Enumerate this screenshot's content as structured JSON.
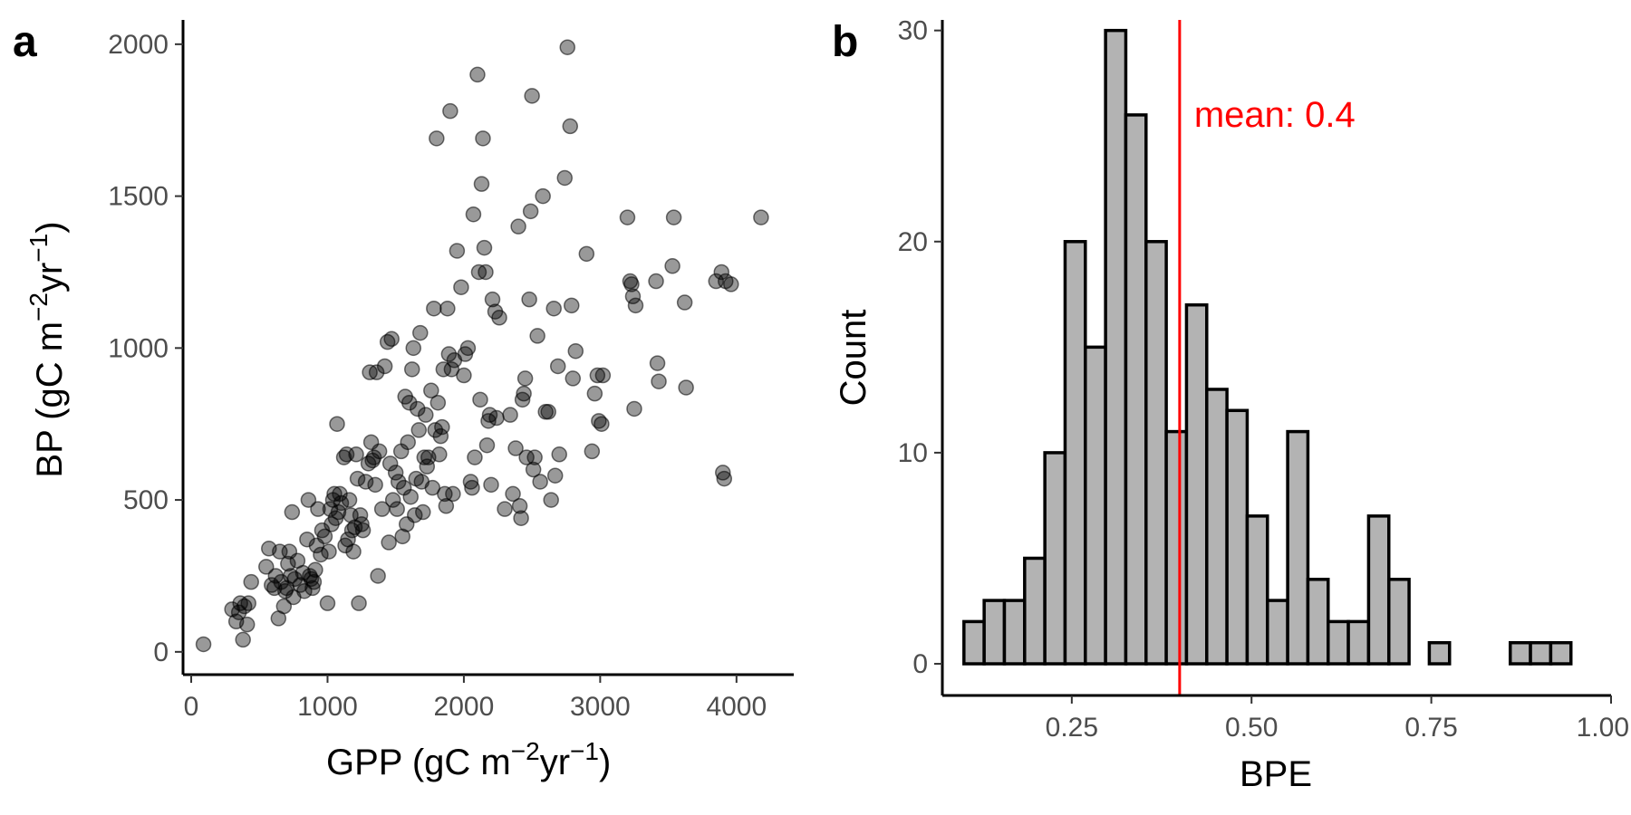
{
  "chart_data": [
    {
      "type": "scatter",
      "panel_label": "a",
      "xlabel": {
        "base": "GPP (gC m",
        "sup1": "−2",
        "mid": "yr",
        "sup2": "−1",
        "end": ")"
      },
      "ylabel": {
        "base": "BP (gC m",
        "sup1": "−2",
        "mid": "yr",
        "sup2": "−1",
        "end": ")"
      },
      "xlim": [
        -60,
        4420
      ],
      "ylim": [
        -75,
        2080
      ],
      "xticks": [
        0,
        1000,
        2000,
        3000,
        4000
      ],
      "yticks": [
        0,
        500,
        1000,
        1500,
        2000
      ],
      "point_color": "#000000",
      "point_opacity": 0.4,
      "points": [
        [
          90,
          25
        ],
        [
          300,
          140
        ],
        [
          330,
          100
        ],
        [
          350,
          130
        ],
        [
          360,
          160
        ],
        [
          380,
          40
        ],
        [
          390,
          150
        ],
        [
          410,
          90
        ],
        [
          420,
          160
        ],
        [
          440,
          230
        ],
        [
          550,
          280
        ],
        [
          570,
          340
        ],
        [
          590,
          220
        ],
        [
          610,
          210
        ],
        [
          620,
          250
        ],
        [
          640,
          110
        ],
        [
          650,
          330
        ],
        [
          660,
          230
        ],
        [
          680,
          150
        ],
        [
          690,
          200
        ],
        [
          700,
          210
        ],
        [
          710,
          290
        ],
        [
          720,
          330
        ],
        [
          730,
          250
        ],
        [
          740,
          460
        ],
        [
          750,
          180
        ],
        [
          760,
          240
        ],
        [
          780,
          300
        ],
        [
          800,
          220
        ],
        [
          820,
          260
        ],
        [
          830,
          200
        ],
        [
          850,
          370
        ],
        [
          860,
          500
        ],
        [
          870,
          250
        ],
        [
          880,
          240
        ],
        [
          890,
          210
        ],
        [
          900,
          230
        ],
        [
          910,
          270
        ],
        [
          920,
          350
        ],
        [
          930,
          470
        ],
        [
          950,
          320
        ],
        [
          960,
          400
        ],
        [
          980,
          380
        ],
        [
          1000,
          160
        ],
        [
          1010,
          330
        ],
        [
          1020,
          470
        ],
        [
          1030,
          420
        ],
        [
          1040,
          500
        ],
        [
          1050,
          520
        ],
        [
          1060,
          440
        ],
        [
          1070,
          750
        ],
        [
          1080,
          460
        ],
        [
          1090,
          520
        ],
        [
          1100,
          490
        ],
        [
          1120,
          640
        ],
        [
          1130,
          350
        ],
        [
          1140,
          650
        ],
        [
          1150,
          370
        ],
        [
          1160,
          500
        ],
        [
          1170,
          450
        ],
        [
          1180,
          400
        ],
        [
          1190,
          330
        ],
        [
          1200,
          410
        ],
        [
          1210,
          650
        ],
        [
          1220,
          570
        ],
        [
          1230,
          160
        ],
        [
          1240,
          450
        ],
        [
          1250,
          420
        ],
        [
          1260,
          400
        ],
        [
          1280,
          560
        ],
        [
          1300,
          620
        ],
        [
          1310,
          920
        ],
        [
          1320,
          690
        ],
        [
          1330,
          630
        ],
        [
          1340,
          640
        ],
        [
          1350,
          550
        ],
        [
          1360,
          920
        ],
        [
          1370,
          250
        ],
        [
          1380,
          660
        ],
        [
          1400,
          470
        ],
        [
          1420,
          940
        ],
        [
          1440,
          1020
        ],
        [
          1450,
          360
        ],
        [
          1460,
          620
        ],
        [
          1470,
          1030
        ],
        [
          1480,
          500
        ],
        [
          1500,
          590
        ],
        [
          1510,
          470
        ],
        [
          1520,
          560
        ],
        [
          1540,
          660
        ],
        [
          1550,
          380
        ],
        [
          1560,
          540
        ],
        [
          1570,
          840
        ],
        [
          1580,
          420
        ],
        [
          1590,
          690
        ],
        [
          1600,
          820
        ],
        [
          1610,
          510
        ],
        [
          1620,
          930
        ],
        [
          1630,
          1000
        ],
        [
          1640,
          450
        ],
        [
          1650,
          570
        ],
        [
          1660,
          800
        ],
        [
          1670,
          730
        ],
        [
          1680,
          1050
        ],
        [
          1690,
          560
        ],
        [
          1700,
          460
        ],
        [
          1710,
          640
        ],
        [
          1720,
          780
        ],
        [
          1730,
          610
        ],
        [
          1740,
          640
        ],
        [
          1760,
          860
        ],
        [
          1770,
          540
        ],
        [
          1780,
          1130
        ],
        [
          1790,
          730
        ],
        [
          1800,
          1690
        ],
        [
          1810,
          820
        ],
        [
          1820,
          650
        ],
        [
          1830,
          710
        ],
        [
          1840,
          740
        ],
        [
          1850,
          930
        ],
        [
          1860,
          520
        ],
        [
          1870,
          480
        ],
        [
          1880,
          1130
        ],
        [
          1890,
          980
        ],
        [
          1900,
          1780
        ],
        [
          1910,
          930
        ],
        [
          1920,
          520
        ],
        [
          1930,
          960
        ],
        [
          1950,
          1320
        ],
        [
          1980,
          1200
        ],
        [
          2000,
          910
        ],
        [
          2010,
          980
        ],
        [
          2030,
          1000
        ],
        [
          2050,
          560
        ],
        [
          2060,
          540
        ],
        [
          2070,
          1440
        ],
        [
          2080,
          640
        ],
        [
          2100,
          1900
        ],
        [
          2110,
          1250
        ],
        [
          2120,
          830
        ],
        [
          2130,
          1540
        ],
        [
          2140,
          1690
        ],
        [
          2150,
          1330
        ],
        [
          2160,
          1250
        ],
        [
          2170,
          680
        ],
        [
          2180,
          760
        ],
        [
          2190,
          780
        ],
        [
          2200,
          550
        ],
        [
          2210,
          1160
        ],
        [
          2230,
          1120
        ],
        [
          2240,
          770
        ],
        [
          2260,
          1100
        ],
        [
          2300,
          470
        ],
        [
          2340,
          780
        ],
        [
          2360,
          520
        ],
        [
          2380,
          670
        ],
        [
          2400,
          1400
        ],
        [
          2410,
          480
        ],
        [
          2420,
          440
        ],
        [
          2430,
          830
        ],
        [
          2440,
          850
        ],
        [
          2450,
          900
        ],
        [
          2460,
          640
        ],
        [
          2480,
          1160
        ],
        [
          2490,
          1450
        ],
        [
          2500,
          1830
        ],
        [
          2510,
          600
        ],
        [
          2520,
          640
        ],
        [
          2540,
          1040
        ],
        [
          2560,
          560
        ],
        [
          2580,
          1500
        ],
        [
          2600,
          790
        ],
        [
          2620,
          790
        ],
        [
          2640,
          500
        ],
        [
          2660,
          1130
        ],
        [
          2670,
          580
        ],
        [
          2690,
          940
        ],
        [
          2700,
          650
        ],
        [
          2740,
          1560
        ],
        [
          2760,
          1990
        ],
        [
          2780,
          1730
        ],
        [
          2790,
          1140
        ],
        [
          2800,
          900
        ],
        [
          2820,
          990
        ],
        [
          2900,
          1310
        ],
        [
          2940,
          660
        ],
        [
          2960,
          850
        ],
        [
          2980,
          910
        ],
        [
          2990,
          760
        ],
        [
          3010,
          750
        ],
        [
          3020,
          910
        ],
        [
          3200,
          1430
        ],
        [
          3220,
          1220
        ],
        [
          3230,
          1210
        ],
        [
          3240,
          1170
        ],
        [
          3250,
          800
        ],
        [
          3260,
          1140
        ],
        [
          3410,
          1220
        ],
        [
          3420,
          950
        ],
        [
          3430,
          890
        ],
        [
          3530,
          1270
        ],
        [
          3540,
          1430
        ],
        [
          3620,
          1150
        ],
        [
          3630,
          870
        ],
        [
          3850,
          1220
        ],
        [
          3890,
          1250
        ],
        [
          3900,
          590
        ],
        [
          3910,
          570
        ],
        [
          3920,
          1220
        ],
        [
          3960,
          1210
        ],
        [
          4180,
          1430
        ]
      ]
    },
    {
      "type": "bar",
      "subtype": "histogram",
      "panel_label": "b",
      "xlabel": "BPE",
      "ylabel": "Count",
      "xlim": [
        0.07,
        1.0
      ],
      "ylim": [
        -1.5,
        30.5
      ],
      "xticks": [
        0.25,
        0.5,
        0.75,
        1.0
      ],
      "xtick_labels": [
        "0.25",
        "0.50",
        "0.75",
        "1.00"
      ],
      "yticks": [
        0,
        10,
        20,
        30
      ],
      "bin_start": 0.1,
      "bin_width": 0.02814,
      "counts": [
        2,
        3,
        3,
        5,
        10,
        20,
        15,
        30,
        26,
        20,
        11,
        17,
        13,
        12,
        7,
        3,
        11,
        4,
        2,
        2,
        7,
        4,
        0,
        1,
        0,
        0,
        0,
        1,
        1,
        1
      ],
      "bar_fill": "#b3b3b3",
      "bar_stroke": "#000000",
      "mean": 0.4,
      "mean_label": "mean: 0.4",
      "mean_color": "#ff0000"
    }
  ]
}
